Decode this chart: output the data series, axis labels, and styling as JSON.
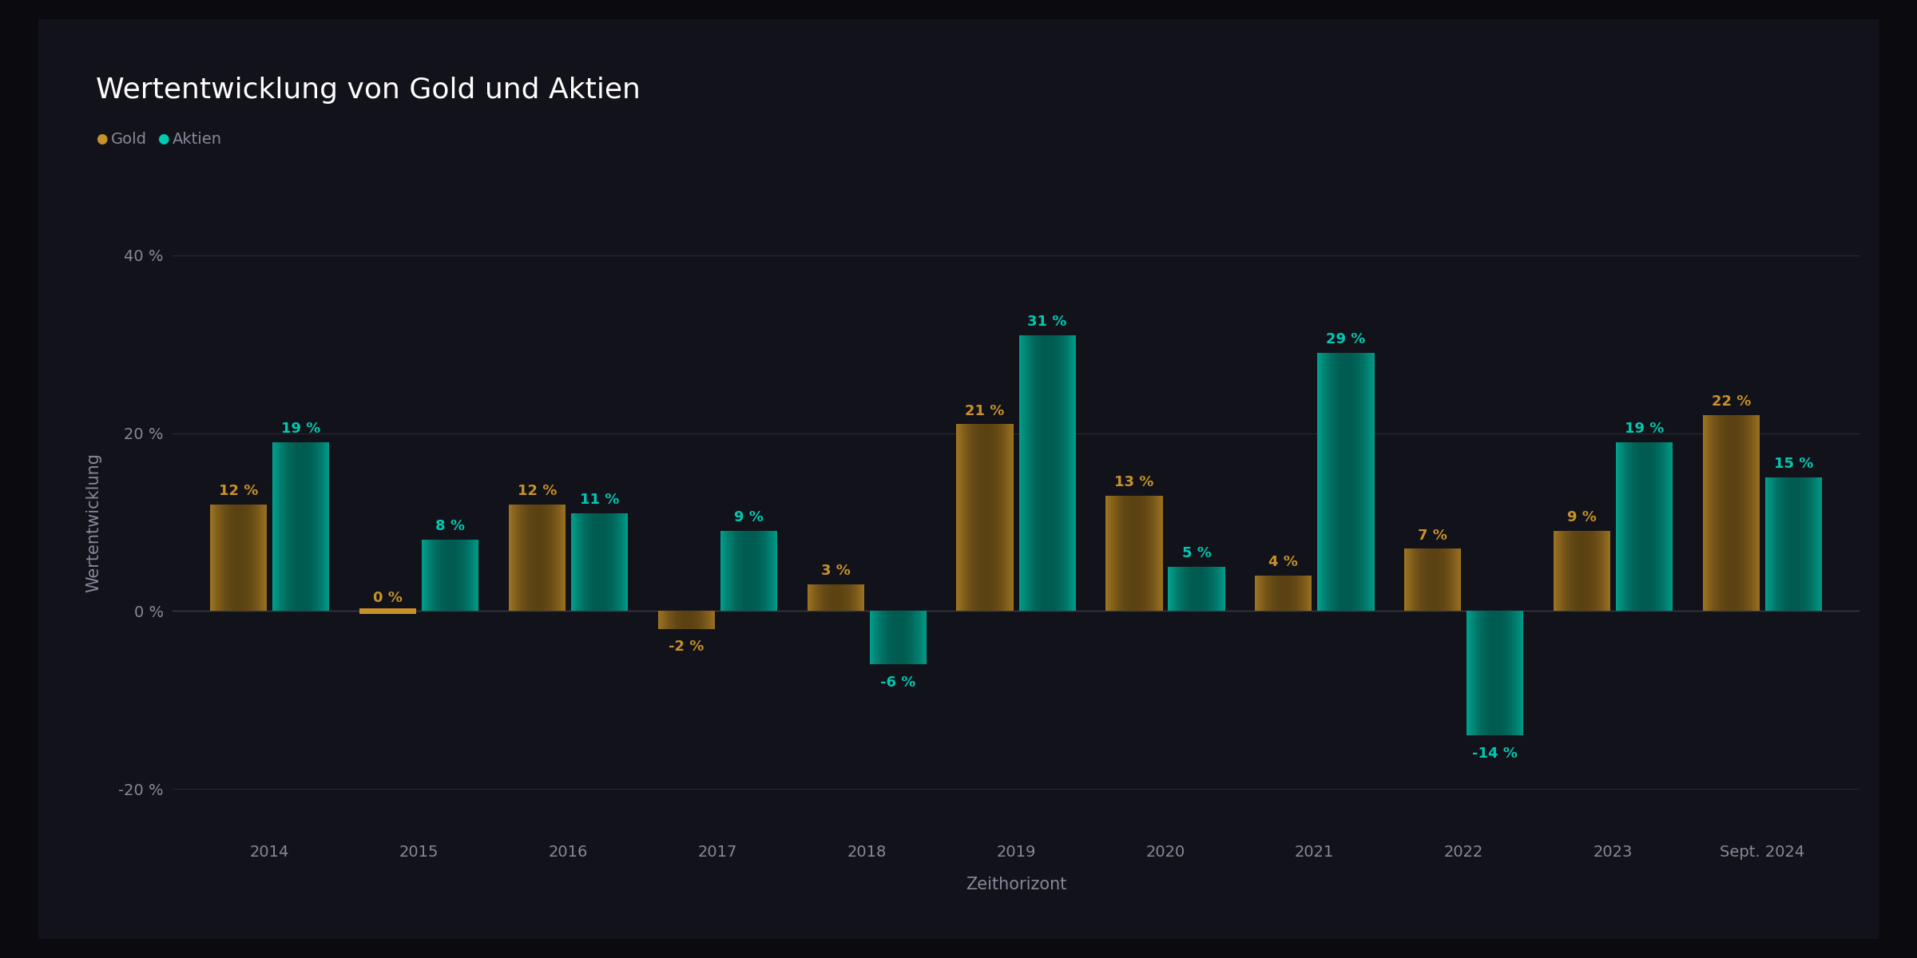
{
  "title": "Wertentwicklung von Gold und Aktien",
  "xlabel": "Zeithorizont",
  "ylabel": "Wertentwicklung",
  "background_color": "#0a0a0f",
  "card_color": "#12121a",
  "plot_bg_color": "#12121a",
  "grid_color": "#2a2a35",
  "zero_line_color": "#3a3a45",
  "categories": [
    "2014",
    "2015",
    "2016",
    "2017",
    "2018",
    "2019",
    "2020",
    "2021",
    "2022",
    "2023",
    "Sept. 2024"
  ],
  "gold_values": [
    12,
    0,
    12,
    -2,
    3,
    21,
    13,
    4,
    7,
    9,
    22
  ],
  "aktien_values": [
    19,
    8,
    11,
    9,
    -6,
    31,
    5,
    29,
    -14,
    19,
    15
  ],
  "gold_color": "#c8922a",
  "gold_edge_color": "#e8b84a",
  "aktien_color": "#00c9b1",
  "aktien_edge_color": "#20e9d1",
  "gold_label": "Gold",
  "aktien_label": "Aktien",
  "title_color": "#ffffff",
  "label_color": "#888899",
  "tick_color": "#888899",
  "value_label_gold_color": "#c8922a",
  "value_label_aktien_color": "#00c9b1",
  "ylim": [
    -25,
    45
  ],
  "yticks": [
    -20,
    0,
    20,
    40
  ],
  "ytick_labels": [
    "-20 %",
    "0 %",
    "20 %",
    "40 %"
  ],
  "bar_width": 0.38,
  "title_fontsize": 26,
  "axis_label_fontsize": 15,
  "tick_fontsize": 14,
  "value_fontsize": 13,
  "legend_fontsize": 14
}
